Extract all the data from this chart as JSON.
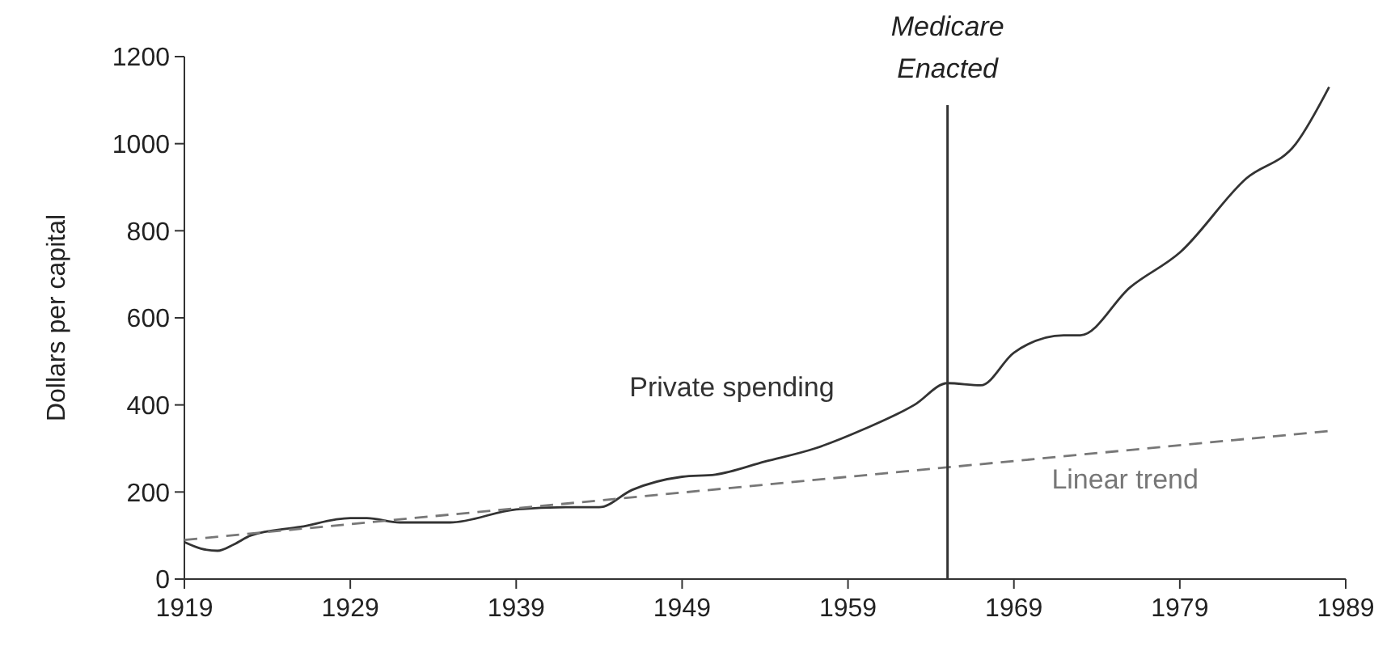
{
  "chart_data": {
    "type": "line",
    "ylabel": "Dollars per capital",
    "xlim": [
      1919,
      1989
    ],
    "xticks": [
      1919,
      1929,
      1939,
      1949,
      1959,
      1969,
      1979,
      1989
    ],
    "ylim": [
      0,
      1200
    ],
    "yticks": [
      0,
      200,
      400,
      600,
      800,
      1000,
      1200
    ],
    "grid": false,
    "marker": "none",
    "series": [
      {
        "name": "Private spending",
        "color": "#333333",
        "line_style": "solid",
        "x": [
          1919,
          1920,
          1921,
          1922,
          1923,
          1926,
          1929,
          1930,
          1932,
          1935,
          1939,
          1942,
          1944,
          1946,
          1949,
          1951,
          1954,
          1957,
          1960,
          1963,
          1965,
          1967,
          1969,
          1972,
          1973,
          1976,
          1979,
          1983,
          1986,
          1988
        ],
        "values": [
          85,
          70,
          65,
          80,
          100,
          120,
          140,
          140,
          130,
          130,
          160,
          165,
          165,
          205,
          235,
          240,
          270,
          300,
          345,
          400,
          450,
          445,
          520,
          560,
          560,
          670,
          750,
          920,
          1000,
          1130
        ]
      },
      {
        "name": "Linear trend",
        "color": "#777777",
        "line_style": "dashed",
        "x": [
          1919,
          1988
        ],
        "values": [
          90,
          340
        ]
      }
    ],
    "ref_lines": [
      {
        "axis": "x",
        "value": 1965,
        "label": "Medicare Enacted",
        "color": "#333333"
      }
    ]
  }
}
